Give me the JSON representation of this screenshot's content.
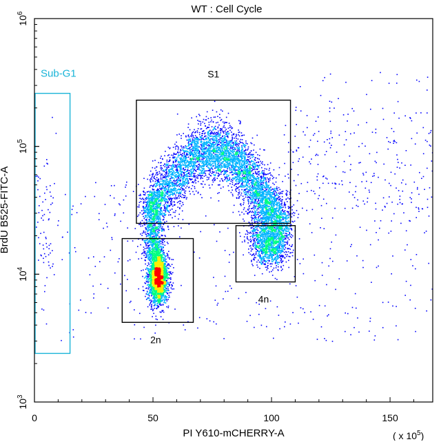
{
  "chart_data": {
    "type": "scatter",
    "title": "WT : Cell Cycle",
    "xlabel": "PI Y610-mCHERRY-A",
    "ylabel": "BrdU B525-FITC-A",
    "x_scale_label": "( x 10",
    "x_scale_exp": "5",
    "x_scale_close": ")",
    "x_axis": {
      "range": [
        0,
        168
      ],
      "scale": "linear",
      "ticks": [
        "0",
        "50",
        "100",
        "150"
      ],
      "tick_values": [
        0,
        50,
        100,
        150
      ]
    },
    "y_axis": {
      "range": [
        1000,
        1000000
      ],
      "scale": "log",
      "ticks": [
        {
          "value": 1000,
          "base": "10",
          "exp": "3"
        },
        {
          "value": 10000,
          "base": "10",
          "exp": "4"
        },
        {
          "value": 100000,
          "base": "10",
          "exp": "5"
        },
        {
          "value": 1000000,
          "base": "10",
          "exp": "6"
        }
      ]
    },
    "grid": false,
    "legend": "none",
    "colormap": [
      "#0000ff",
      "#00b4ff",
      "#00ff80",
      "#ffee00",
      "#ff0000"
    ],
    "gates": [
      {
        "name": "Sub-G1",
        "label": "Sub-G1",
        "color": "#19b4d8",
        "x_range": [
          0,
          15
        ],
        "y_range": [
          2400,
          260000
        ]
      },
      {
        "name": "S1",
        "label": "S1",
        "color": "#000000",
        "x_range": [
          43,
          108
        ],
        "y_range": [
          25000,
          230000
        ]
      },
      {
        "name": "2n",
        "label": "2n",
        "color": "#000000",
        "x_range": [
          37,
          67
        ],
        "y_range": [
          4200,
          19000
        ]
      },
      {
        "name": "4n",
        "label": "4n",
        "color": "#000000",
        "x_range": [
          85,
          110
        ],
        "y_range": [
          8700,
          24000
        ]
      }
    ],
    "populations": [
      {
        "name": "2n",
        "x_center": 52,
        "y_center": 9500,
        "x_spread": 2.0,
        "y_spread_log": 0.1,
        "count": 2600
      },
      {
        "name": "4n",
        "x_center": 99,
        "y_center": 17000,
        "x_spread": 3.8,
        "y_spread_log": 0.08,
        "count": 1000
      },
      {
        "name": "S1",
        "x_range": [
          47,
          106
        ],
        "y_peak": 90000,
        "count": 5200
      },
      {
        "name": "Sub-G1",
        "x_center": 4,
        "y_center": 25000,
        "x_spread": 2.5,
        "y_spread_log": 0.35,
        "count": 80
      },
      {
        "name": "Upper-right scatter",
        "x_range": [
          105,
          168
        ],
        "y_center": 80000,
        "count": 260
      },
      {
        "name": "Background",
        "x_range": [
          10,
          168
        ],
        "y_range": [
          3000,
          60000
        ],
        "count": 360
      }
    ]
  }
}
